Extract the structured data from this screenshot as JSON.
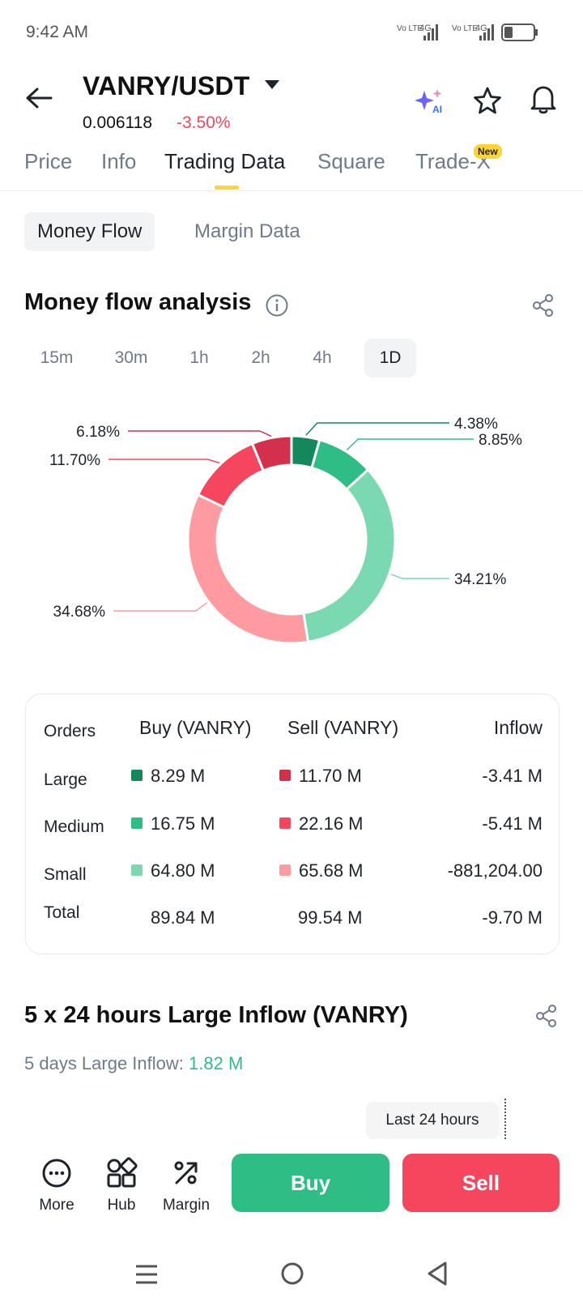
{
  "status_bar": {
    "time": "9:42 AM",
    "network1": "Vo LTE",
    "network1_gen": "4G",
    "network2": "Vo LTE",
    "network2_gen": "4G"
  },
  "header": {
    "pair": "VANRY/USDT",
    "price": "0.006118",
    "change": "-3.50%",
    "ai_badge": "AI",
    "icons": [
      "back-arrow-icon",
      "chevron-down-icon",
      "ai-sparkle-icon",
      "star-icon",
      "bell-icon"
    ]
  },
  "tabs": [
    {
      "label": "Price"
    },
    {
      "label": "Info"
    },
    {
      "label": "Trading Data"
    },
    {
      "label": "Square"
    },
    {
      "label": "Trade-X"
    }
  ],
  "new_badge": "New",
  "sub_tabs": [
    {
      "label": "Money Flow"
    },
    {
      "label": "Margin Data"
    }
  ],
  "money_flow": {
    "title": "Money flow analysis",
    "intervals": [
      "15m",
      "30m",
      "1h",
      "2h",
      "4h",
      "1D"
    ],
    "selected_interval": "1D"
  },
  "chart_data": {
    "type": "pie",
    "variant": "donut",
    "slices": [
      {
        "label": "4.38%",
        "value": 4.38,
        "color": "#14885c"
      },
      {
        "label": "8.85%",
        "value": 8.85,
        "color": "#2ebd85"
      },
      {
        "label": "34.21%",
        "value": 34.21,
        "color": "#7bd9b1"
      },
      {
        "label": "34.68%",
        "value": 34.68,
        "color": "#fe9ba1"
      },
      {
        "label": "11.70%",
        "value": 11.7,
        "color": "#f6465d"
      },
      {
        "label": "6.18%",
        "value": 6.18,
        "color": "#d2304d"
      }
    ]
  },
  "orders_table": {
    "headers": {
      "orders": "Orders",
      "buy": "Buy (VANRY)",
      "sell": "Sell (VANRY)",
      "inflow": "Inflow"
    },
    "rows": [
      {
        "label": "Large",
        "buy": "8.29 M",
        "sell": "11.70 M",
        "inflow": "-3.41 M",
        "buy_color": "#14885c",
        "sell_color": "#d2304d"
      },
      {
        "label": "Medium",
        "buy": "16.75 M",
        "sell": "22.16 M",
        "inflow": "-5.41 M",
        "buy_color": "#2ebd85",
        "sell_color": "#f6465d"
      },
      {
        "label": "Small",
        "buy": "64.80 M",
        "sell": "65.68 M",
        "inflow": "-881,204.00",
        "buy_color": "#7bd9b1",
        "sell_color": "#fe9ba1"
      }
    ],
    "total": {
      "label": "Total",
      "buy": "89.84 M",
      "sell": "99.54 M",
      "inflow": "-9.70 M"
    }
  },
  "large_inflow": {
    "title": "5 x 24 hours Large Inflow (VANRY)",
    "sub_label": "5 days Large Inflow:",
    "sub_value": "1.82 M",
    "tooltip": "Last 24 hours"
  },
  "bottom_bar": {
    "items": [
      {
        "label": "More"
      },
      {
        "label": "Hub"
      },
      {
        "label": "Margin"
      }
    ],
    "buy": "Buy",
    "sell": "Sell"
  },
  "colors": {
    "buy": "#2ebd85",
    "sell": "#f6465d",
    "accent": "#fcd535"
  }
}
